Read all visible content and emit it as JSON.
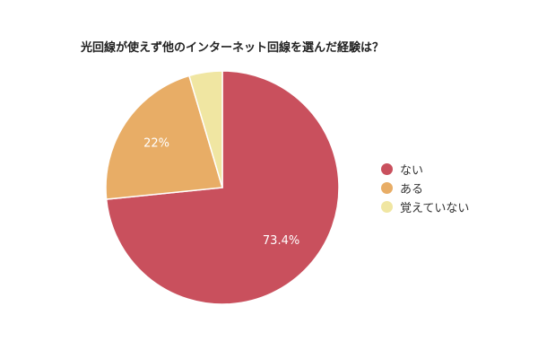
{
  "chart_data": {
    "type": "pie",
    "title": "光回線が使えず他のインターネット回線を選んだ経験は？",
    "categories": [
      "ない",
      "ある",
      "覚えていない"
    ],
    "values": [
      73.4,
      22,
      4.6
    ],
    "data_labels": [
      "73.4%",
      "22%",
      ""
    ],
    "colors": [
      "#c9505d",
      "#e8ad66",
      "#f0e6a2"
    ],
    "legend_position": "right",
    "start_angle_deg": 0,
    "direction": "clockwise"
  }
}
